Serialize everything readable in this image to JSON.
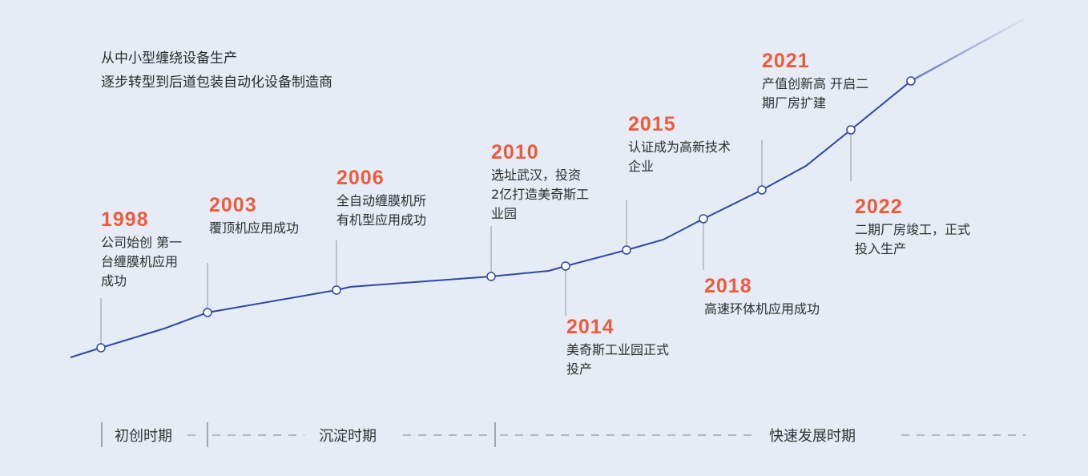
{
  "intro": [
    "从中小型缠绕设备生产",
    "逐步转型到后道包装自动化设备制造商"
  ],
  "events": [
    {
      "year": "1998",
      "lines": [
        "公司始创 第一",
        "台缠膜机应用",
        "成功"
      ]
    },
    {
      "year": "2003",
      "lines": [
        "覆顶机应用成功"
      ]
    },
    {
      "year": "2006",
      "lines": [
        "全自动缠膜机所",
        "有机型应用成功"
      ]
    },
    {
      "year": "2010",
      "lines": [
        "选址武汉，投资",
        "2亿打造美奇斯工",
        "业园"
      ]
    },
    {
      "year": "2014",
      "lines": [
        "美奇斯工业园正式",
        "投产"
      ]
    },
    {
      "year": "2015",
      "lines": [
        "认证成为高新技术",
        "企业"
      ]
    },
    {
      "year": "2018",
      "lines": [
        "高速环体机应用成功"
      ]
    },
    {
      "year": "2021",
      "lines": [
        "产值创新高 开启二",
        "期厂房扩建"
      ]
    },
    {
      "year": "2022",
      "lines": [
        "二期厂房竣工，正式",
        "投入生产"
      ]
    }
  ],
  "phases": [
    "初创时期",
    "沉淀时期",
    "快速发展时期"
  ],
  "colors": {
    "background": "#e5ecf5",
    "line": "#2d48a8",
    "year": "#ee5a3d"
  }
}
